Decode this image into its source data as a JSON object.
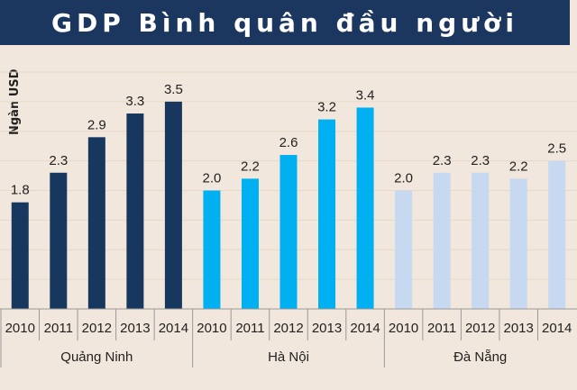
{
  "chart_data": {
    "type": "bar",
    "title": "GDP Bình quân đầu người",
    "ylabel": "Ngàn USD",
    "xlabel": "",
    "ylim": [
      0,
      4
    ],
    "grid": true,
    "legend": "none",
    "categories": [
      "2010",
      "2011",
      "2012",
      "2013",
      "2014"
    ],
    "series": [
      {
        "name": "Quảng Ninh",
        "color": "#17375e",
        "values": [
          1.8,
          2.3,
          2.9,
          3.3,
          3.5
        ]
      },
      {
        "name": "Hà Nội",
        "color": "#00b0f0",
        "values": [
          2.0,
          2.2,
          2.6,
          3.2,
          3.4
        ]
      },
      {
        "name": "Đà Nẵng",
        "color": "#c6d9f1",
        "values": [
          2.0,
          2.3,
          2.3,
          2.2,
          2.5
        ]
      }
    ]
  }
}
